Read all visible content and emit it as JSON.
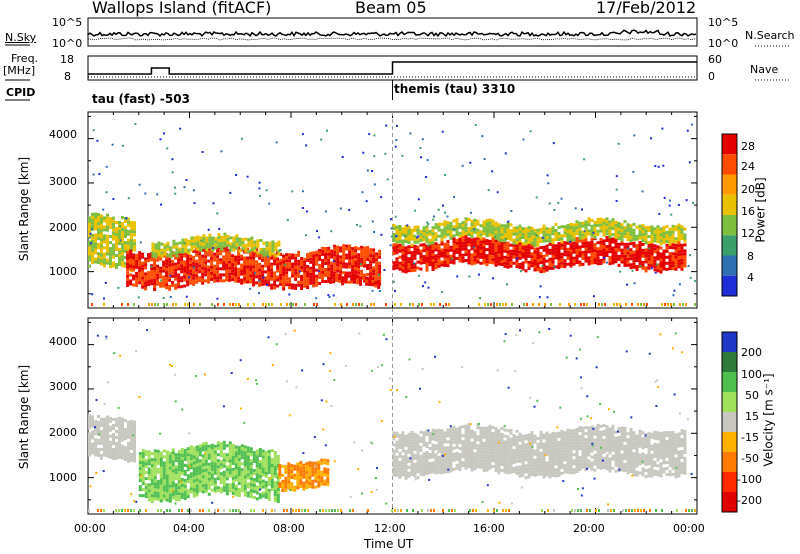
{
  "header": {
    "station": "Wallops Island (fitACF)",
    "beam": "Beam 05",
    "date": "17/Feb/2012"
  },
  "panels": {
    "noise": {
      "left_label": "N.Sky",
      "right_label": "N.Search",
      "left_ticks": [
        "10^5",
        "10^0"
      ],
      "right_ticks": [
        "10^5",
        "10^0"
      ]
    },
    "freq": {
      "left_label_line1": "Freq.",
      "left_label_line2": "[MHz]",
      "right_label": "Nave",
      "left_ticks": [
        "18",
        "8"
      ],
      "right_ticks": [
        "60",
        "0"
      ]
    },
    "cpid": {
      "label": "CPID",
      "mode1": "tau (fast) -503",
      "mode2": "themis (tau) 3310"
    }
  },
  "power_panel": {
    "ylabel": "Slant Range [km]",
    "yticks": [
      "4000",
      "3000",
      "2000",
      "1000"
    ],
    "colorbar_title": "Power [dB]",
    "colorbar_ticks": [
      "28",
      "24",
      "20",
      "16",
      "12",
      "8",
      "4"
    ],
    "colors": [
      "#e50000",
      "#ff4b00",
      "#ff9a00",
      "#e9c100",
      "#7fbf3f",
      "#3a9f6a",
      "#2e6fb0",
      "#1f2dd6"
    ]
  },
  "velocity_panel": {
    "ylabel": "Slant Range [km]",
    "yticks": [
      "4000",
      "3000",
      "2000",
      "1000"
    ],
    "colorbar_title": "Velocity [m s⁻¹]",
    "colorbar_ticks": [
      "200",
      "100",
      "50",
      "15",
      "-15",
      "-50",
      "-100",
      "-200"
    ],
    "colors": [
      "#1f38c8",
      "#2f7a3a",
      "#4fbf4f",
      "#a0e05a",
      "#c8c8c0",
      "#ffb000",
      "#ff7a00",
      "#ff2a00",
      "#e00000"
    ]
  },
  "xaxis": {
    "title": "Time UT",
    "ticks": [
      "00:00",
      "04:00",
      "08:00",
      "12:00",
      "16:00",
      "20:00",
      "00:00"
    ]
  },
  "chart_data": [
    {
      "type": "heatmap",
      "title": "Power [dB]",
      "xlabel": "Time UT",
      "ylabel": "Slant Range [km]",
      "x_range_hours": [
        0,
        24
      ],
      "ylim": [
        180,
        4600
      ],
      "value_range": [
        0,
        30
      ],
      "features": [
        {
          "time": [
            0.0,
            1.8
          ],
          "range": [
            1100,
            2200
          ],
          "power": 14
        },
        {
          "time": [
            1.5,
            11.5
          ],
          "range": [
            700,
            1500
          ],
          "power": 26
        },
        {
          "time": [
            2.5,
            7.5
          ],
          "range": [
            1450,
            1750
          ],
          "power": 14
        },
        {
          "time": [
            9.5,
            11.5
          ],
          "range": [
            650,
            850
          ],
          "power": 28
        },
        {
          "time": [
            12.0,
            23.5
          ],
          "range": [
            1100,
            1700
          ],
          "power": 28
        },
        {
          "time": [
            12.0,
            23.5
          ],
          "range": [
            1700,
            2100
          ],
          "power": 14
        }
      ]
    },
    {
      "type": "heatmap",
      "title": "Velocity [m s⁻¹]",
      "xlabel": "Time UT",
      "ylabel": "Slant Range [km]",
      "x_range_hours": [
        0,
        24
      ],
      "ylim": [
        180,
        4600
      ],
      "value_range": [
        -200,
        200
      ],
      "features": [
        {
          "time": [
            0.0,
            1.8
          ],
          "range": [
            1400,
            2300
          ],
          "velocity": 0
        },
        {
          "time": [
            2.0,
            7.5
          ],
          "range": [
            600,
            1700
          ],
          "velocity": 50
        },
        {
          "time": [
            7.5,
            9.5
          ],
          "range": [
            800,
            1400
          ],
          "velocity": -50
        },
        {
          "time": [
            12.0,
            23.5
          ],
          "range": [
            1100,
            2100
          ],
          "velocity": 0
        }
      ]
    }
  ]
}
